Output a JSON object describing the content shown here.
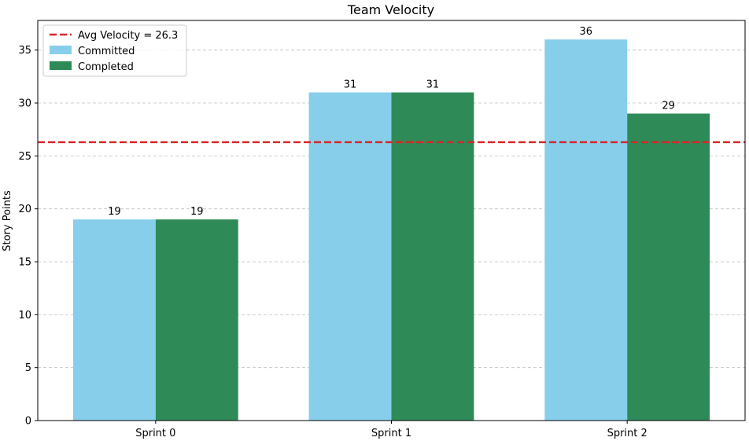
{
  "chart_data": {
    "type": "bar",
    "title": "Team Velocity",
    "xlabel": "",
    "ylabel": "Story Points",
    "categories": [
      "Sprint 0",
      "Sprint 1",
      "Sprint 2"
    ],
    "series": [
      {
        "name": "Committed",
        "values": [
          19,
          31,
          36
        ],
        "color": "#87CEEB"
      },
      {
        "name": "Completed",
        "values": [
          19,
          31,
          29
        ],
        "color": "#2E8B57"
      }
    ],
    "reference_line": {
      "label": "Avg Velocity = 26.3",
      "value": 26.3,
      "color": "#d62728",
      "style": "dashed"
    },
    "ylim": [
      0,
      37.8
    ],
    "yticks": [
      0,
      5,
      10,
      15,
      20,
      25,
      30,
      35
    ],
    "grid": true,
    "legend_position": "top-left",
    "bar_labels": true
  }
}
